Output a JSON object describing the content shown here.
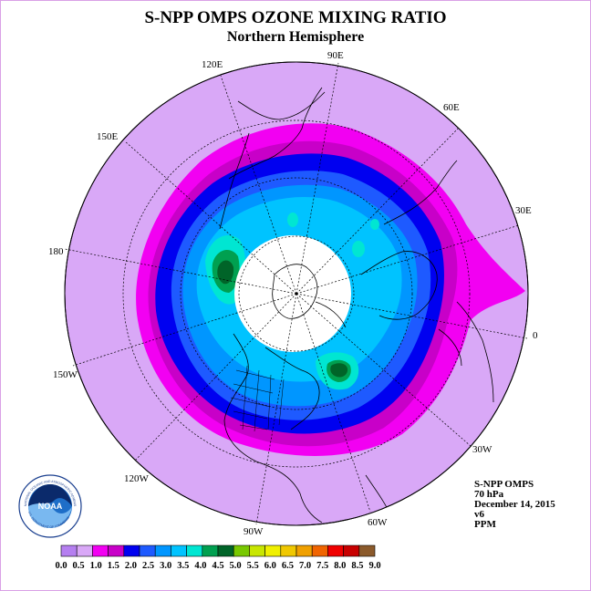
{
  "title": "S-NPP OMPS OZONE MIXING RATIO",
  "subtitle": "Northern Hemisphere",
  "longitude_labels": [
    "90E",
    "60E",
    "30E",
    "0",
    "30W",
    "60W",
    "90W",
    "120W",
    "150W",
    "180",
    "150E",
    "120E"
  ],
  "info": {
    "instrument": "S-NPP OMPS",
    "level": "70 hPa",
    "date": "December 14, 2015",
    "version": "v6",
    "units": "PPM"
  },
  "logo": {
    "name": "NOAA",
    "ring_text": "NATIONAL OCEANIC AND ATMOSPHERIC ADMINISTRATION",
    "bottom_text": "U.S. DEPARTMENT OF COMMERCE"
  },
  "colorbar": {
    "colors": [
      "#b57ff0",
      "#d9a8f7",
      "#f200f2",
      "#c800c8",
      "#0000f0",
      "#1e5aff",
      "#0096ff",
      "#00c3ff",
      "#00e6d2",
      "#00a050",
      "#006428",
      "#78c800",
      "#c8e600",
      "#f0f000",
      "#f0c800",
      "#f0a000",
      "#f06400",
      "#f00000",
      "#c80000",
      "#8b5a2b"
    ],
    "tick_labels": [
      "0.0",
      "0.5",
      "1.0",
      "1.5",
      "2.0",
      "2.5",
      "3.0",
      "3.5",
      "4.0",
      "4.5",
      "5.0",
      "5.5",
      "6.0",
      "6.5",
      "7.0",
      "7.5",
      "8.0",
      "8.5",
      "9.0"
    ]
  },
  "fields": {
    "background_color": "#d9a8f7",
    "no_data_color": "#ffffff"
  }
}
